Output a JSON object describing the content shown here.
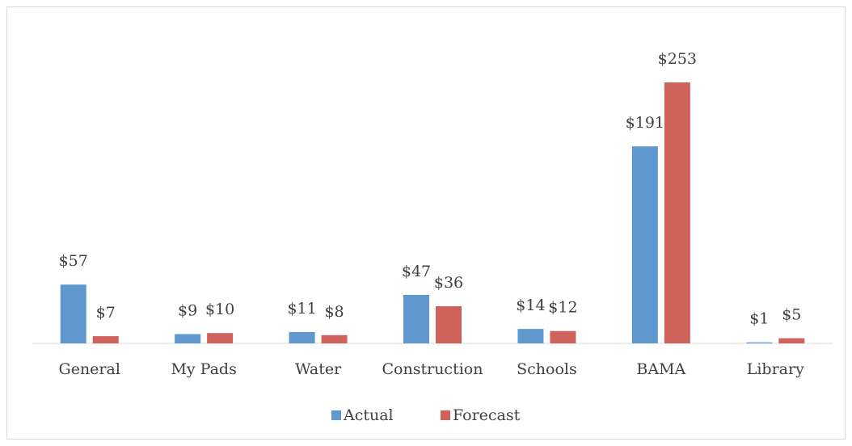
{
  "chart_data": {
    "type": "bar",
    "categories": [
      "General",
      "My Pads",
      "Water",
      "Construction",
      "Schools",
      "BAMA",
      "Library"
    ],
    "series": [
      {
        "name": "Actual",
        "color": "#5f97cf",
        "values": [
          57,
          9,
          11,
          47,
          14,
          191,
          1
        ],
        "value_labels": [
          "$57",
          "$9",
          "$11",
          "$47",
          "$14",
          "$191",
          "$1"
        ]
      },
      {
        "name": "Forecast",
        "color": "#d0625c",
        "values": [
          7,
          10,
          8,
          36,
          12,
          253,
          5
        ],
        "value_labels": [
          "$7",
          "$10",
          "$8",
          "$36",
          "$12",
          "$253",
          "$5"
        ]
      }
    ],
    "legend": "bottom"
  }
}
